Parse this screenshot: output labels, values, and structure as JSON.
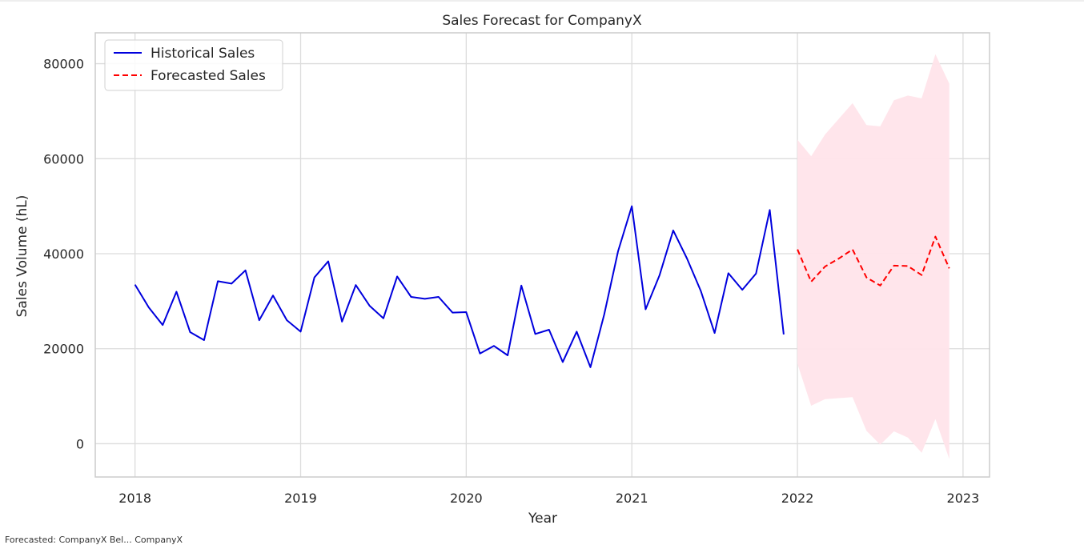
{
  "chart_data": {
    "type": "line",
    "title": "Sales Forecast for CompanyX",
    "xlabel": "Year",
    "ylabel": "Sales Volume (hL)",
    "xlim": [
      2017.76,
      2023.16
    ],
    "ylim": [
      -7000,
      86500
    ],
    "x_ticks": [
      2018,
      2019,
      2020,
      2021,
      2022,
      2023
    ],
    "x_tick_labels": [
      "2018",
      "2019",
      "2020",
      "2021",
      "2022",
      "2023"
    ],
    "y_ticks": [
      0,
      20000,
      40000,
      60000,
      80000
    ],
    "y_tick_labels": [
      "0",
      "20000",
      "40000",
      "60000",
      "80000"
    ],
    "grid": true,
    "legend_position": "top-left",
    "series": [
      {
        "name": "Historical Sales",
        "color": "#0000dd",
        "style": "solid",
        "x": [
          2018.0,
          2018.083,
          2018.167,
          2018.25,
          2018.333,
          2018.417,
          2018.5,
          2018.583,
          2018.667,
          2018.75,
          2018.833,
          2018.917,
          2019.0,
          2019.083,
          2019.167,
          2019.25,
          2019.333,
          2019.417,
          2019.5,
          2019.583,
          2019.667,
          2019.75,
          2019.833,
          2019.917,
          2020.0,
          2020.083,
          2020.167,
          2020.25,
          2020.333,
          2020.417,
          2020.5,
          2020.583,
          2020.667,
          2020.75,
          2020.833,
          2020.917,
          2021.0,
          2021.083,
          2021.167,
          2021.25,
          2021.333,
          2021.417,
          2021.5,
          2021.583,
          2021.667,
          2021.75,
          2021.833,
          2021.917
        ],
        "values": [
          33500,
          28700,
          25000,
          32000,
          23500,
          21800,
          34200,
          33700,
          36500,
          26000,
          31200,
          26000,
          23600,
          35000,
          38400,
          25700,
          33400,
          29000,
          26400,
          35200,
          30900,
          30500,
          30900,
          27600,
          27700,
          19000,
          20600,
          18600,
          33300,
          23100,
          24000,
          17200,
          23600,
          16100,
          27200,
          40500,
          50000,
          28300,
          35400,
          44900,
          39000,
          32100,
          23300,
          35900,
          32400,
          35800,
          49200,
          23000
        ]
      },
      {
        "name": "Forecasted Sales",
        "color": "#ff0000",
        "style": "dashed",
        "x": [
          2022.0,
          2022.083,
          2022.167,
          2022.25,
          2022.333,
          2022.417,
          2022.5,
          2022.583,
          2022.667,
          2022.75,
          2022.833,
          2022.917
        ],
        "values": [
          40900,
          34100,
          37300,
          39000,
          40900,
          35000,
          33300,
          37500,
          37400,
          35500,
          43600,
          36900
        ],
        "interval_lower": [
          16800,
          8000,
          9400,
          9600,
          9800,
          2700,
          -200,
          2600,
          1300,
          -1900,
          5200,
          -3200
        ],
        "interval_upper": [
          64000,
          60500,
          65100,
          68400,
          71700,
          67100,
          66800,
          72300,
          73300,
          72700,
          82000,
          75800
        ],
        "interval_color": "#ffe4ea"
      }
    ]
  },
  "caption": "Forecasted: CompanyX  Bel...  CompanyX"
}
